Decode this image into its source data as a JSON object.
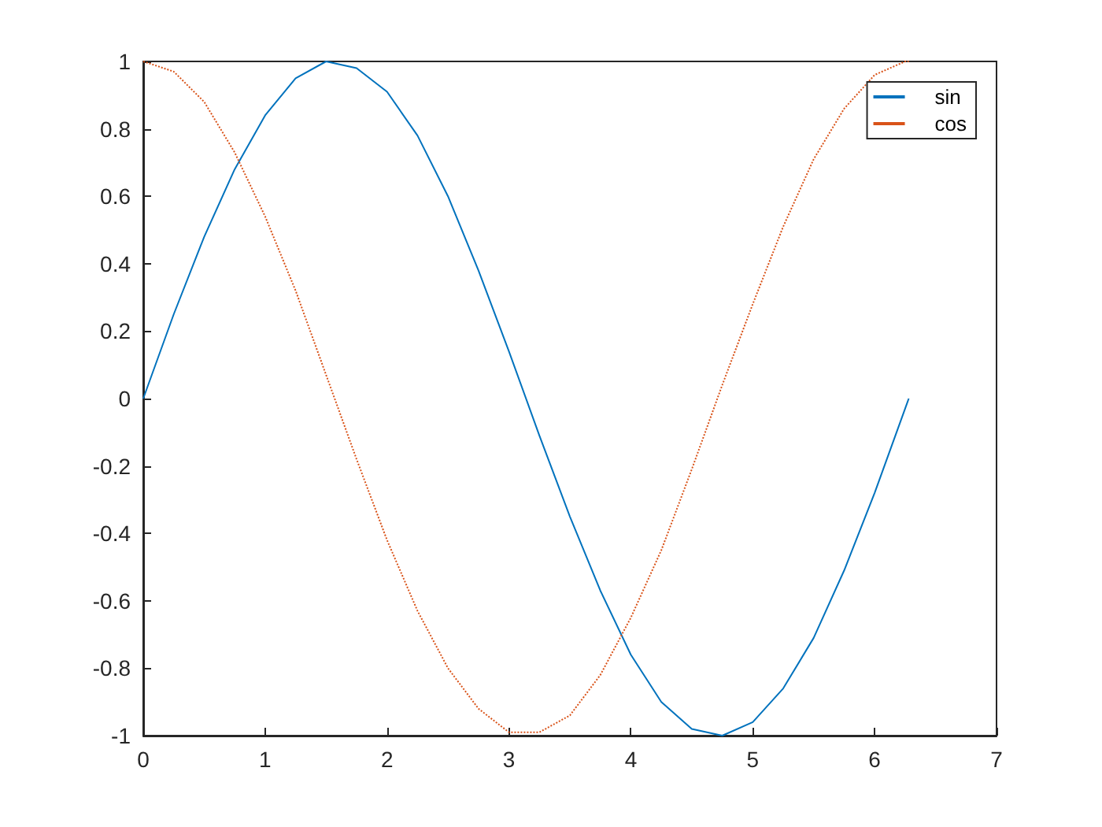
{
  "chart_data": {
    "type": "line",
    "x": [
      0,
      0.25,
      0.5,
      0.75,
      1,
      1.25,
      1.5,
      1.75,
      2,
      2.25,
      2.5,
      2.75,
      3,
      3.25,
      3.5,
      3.75,
      4,
      4.25,
      4.5,
      4.75,
      5,
      5.25,
      5.5,
      5.75,
      6,
      6.25,
      6.28
    ],
    "series": [
      {
        "name": "sin",
        "color": "#0072bd",
        "line_style": "solid",
        "values": [
          0,
          0.25,
          0.48,
          0.68,
          0.84,
          0.95,
          1,
          0.98,
          0.91,
          0.78,
          0.6,
          0.38,
          0.14,
          -0.11,
          -0.35,
          -0.57,
          -0.76,
          -0.9,
          -0.98,
          -1,
          -0.96,
          -0.86,
          -0.71,
          -0.51,
          -0.28,
          -0.03,
          0
        ]
      },
      {
        "name": "cos",
        "color": "#d95319",
        "line_style": "dotted",
        "values": [
          1,
          0.97,
          0.88,
          0.73,
          0.54,
          0.32,
          0.07,
          -0.18,
          -0.42,
          -0.63,
          -0.8,
          -0.92,
          -0.99,
          -0.99,
          -0.94,
          -0.82,
          -0.65,
          -0.45,
          -0.21,
          0.04,
          0.28,
          0.51,
          0.71,
          0.86,
          0.96,
          1,
          1
        ]
      }
    ],
    "xlim": [
      0,
      7
    ],
    "xticks": [
      0,
      1,
      2,
      3,
      4,
      5,
      6,
      7
    ],
    "ylim": [
      -1,
      1
    ],
    "yticks": [
      -1,
      -0.8,
      -0.6,
      -0.4,
      -0.2,
      0,
      0.2,
      0.4,
      0.6,
      0.8,
      1
    ],
    "grid": false,
    "legend": "top right",
    "marker": "none"
  }
}
